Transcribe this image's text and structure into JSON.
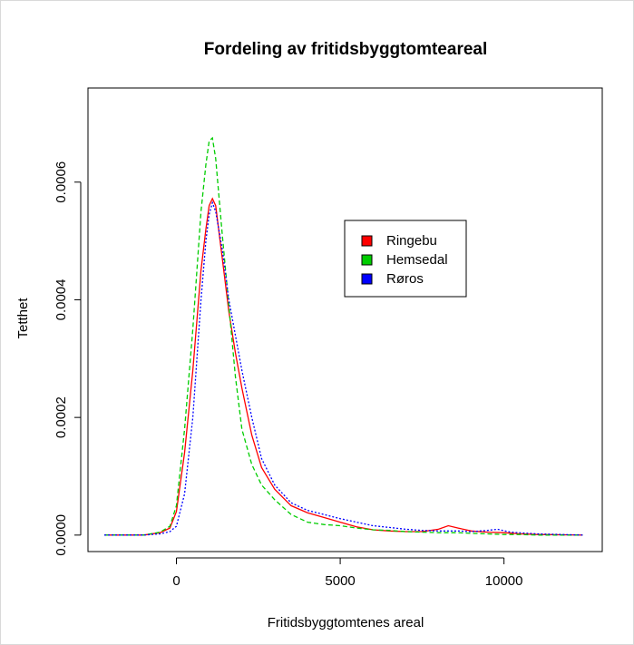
{
  "chart_data": {
    "type": "line",
    "title": "Fordeling av fritidsbyggtomteareal",
    "xlabel": "Fritidsbyggtomtenes areal",
    "ylabel": "Tetthet",
    "xlim": [
      -2700,
      13000
    ],
    "ylim": [
      -2.8e-05,
      0.00076
    ],
    "xticks": [
      0,
      5000,
      10000
    ],
    "xtick_labels": [
      "0",
      "5000",
      "10000"
    ],
    "yticks": [
      0,
      0.0002,
      0.0004,
      0.0006
    ],
    "ytick_labels": [
      "0.0000",
      "0.0002",
      "0.0004",
      "0.0006"
    ],
    "grid": false,
    "legend_position": "top-right",
    "series": [
      {
        "name": "Ringebu",
        "color": "#ff0000",
        "dash": "solid",
        "x": [
          -2200,
          -1500,
          -1000,
          -500,
          -200,
          0,
          250,
          500,
          750,
          900,
          1000,
          1100,
          1200,
          1400,
          1600,
          1800,
          2000,
          2300,
          2600,
          3000,
          3500,
          4000,
          4500,
          5000,
          5500,
          6000,
          6500,
          7000,
          7500,
          8000,
          8300,
          8600,
          9000,
          9500,
          10000,
          10500,
          11000,
          12400
        ],
        "y": [
          0,
          0,
          0,
          4e-06,
          1.2e-05,
          4e-05,
          0.00014,
          0.00028,
          0.00045,
          0.00052,
          0.00056,
          0.000572,
          0.00056,
          0.00047,
          0.00038,
          0.00031,
          0.00025,
          0.00017,
          0.000115,
          7.8e-05,
          5e-05,
          3.8e-05,
          3e-05,
          2.2e-05,
          1.4e-05,
          9e-06,
          7e-06,
          6e-06,
          6e-06,
          1e-05,
          1.6e-05,
          1.2e-05,
          7e-06,
          5e-06,
          4e-06,
          2e-06,
          1e-06,
          0
        ]
      },
      {
        "name": "Hemsedal",
        "color": "#00cd00",
        "dash": "dashed",
        "x": [
          -2200,
          -1500,
          -1000,
          -500,
          -200,
          0,
          250,
          500,
          750,
          900,
          1000,
          1100,
          1200,
          1400,
          1600,
          1800,
          2000,
          2300,
          2600,
          3000,
          3500,
          4000,
          4500,
          5000,
          5500,
          6000,
          6500,
          7000,
          7500,
          8000,
          8300,
          8600,
          9000,
          9500,
          10000,
          10500,
          11000,
          12400
        ],
        "y": [
          0,
          0,
          0,
          5e-06,
          1.5e-05,
          5e-05,
          0.00018,
          0.00035,
          0.00055,
          0.00063,
          0.00067,
          0.000675,
          0.00064,
          0.00051,
          0.00039,
          0.00027,
          0.00018,
          0.00012,
          8.5e-05,
          6e-05,
          3.5e-05,
          2.2e-05,
          1.8e-05,
          1.6e-05,
          1.2e-05,
          9e-06,
          8e-06,
          6e-06,
          5e-06,
          4e-06,
          4e-06,
          4e-06,
          3e-06,
          2e-06,
          1e-06,
          1e-06,
          0,
          0
        ]
      },
      {
        "name": "Røros",
        "color": "#0000ff",
        "dash": "dotted",
        "x": [
          -2200,
          -1500,
          -1000,
          -500,
          -200,
          0,
          250,
          500,
          750,
          900,
          1000,
          1100,
          1200,
          1400,
          1600,
          1800,
          2000,
          2300,
          2600,
          3000,
          3500,
          4000,
          4500,
          5000,
          5500,
          6000,
          6500,
          7000,
          7500,
          8000,
          8300,
          8600,
          9000,
          9500,
          9800,
          10200,
          11000,
          12400
        ],
        "y": [
          0,
          0,
          0,
          2e-06,
          6e-06,
          1.5e-05,
          7e-05,
          0.0002,
          0.0004,
          0.0005,
          0.000545,
          0.000565,
          0.00055,
          0.000485,
          0.0004,
          0.00034,
          0.00028,
          0.0002,
          0.00013,
          8.5e-05,
          5.5e-05,
          4.2e-05,
          3.5e-05,
          2.8e-05,
          2.2e-05,
          1.6e-05,
          1.3e-05,
          1e-05,
          8e-06,
          7e-06,
          7e-06,
          7e-06,
          6e-06,
          8e-06,
          1e-05,
          5e-06,
          2e-06,
          0
        ]
      }
    ]
  }
}
